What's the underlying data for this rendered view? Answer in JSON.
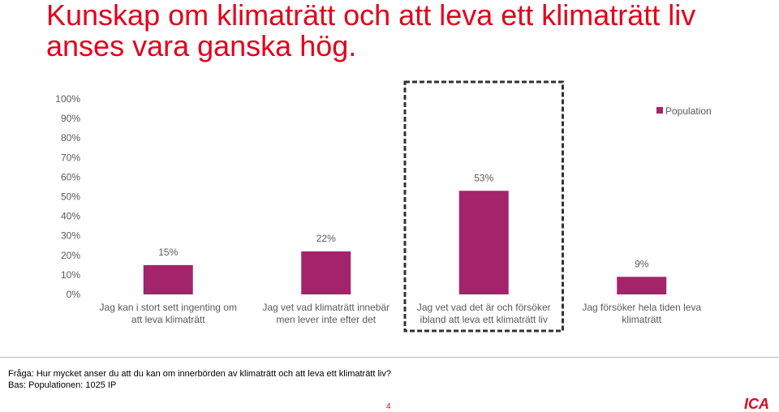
{
  "title": "Kunskap om klimaträtt och att leva ett klimaträtt liv anses vara ganska hög.",
  "footnote": {
    "question": "Fråga: Hur mycket anser du att du kan om innerbörden av klimaträtt och att leva ett klimaträtt liv?",
    "base": "Bas: Populationen: 1025 IP"
  },
  "page_number": "4",
  "logo_text": "ICA",
  "colors": {
    "bar": "#a3246a",
    "title": "#e3001b",
    "logo": "#e3001b"
  },
  "chart_data": {
    "type": "bar",
    "categories": [
      "Jag kan i stort sett ingenting om att leva klimaträtt",
      "Jag vet vad klimaträtt innebär men lever inte efter det",
      "Jag vet vad det är och försöker ibland att leva ett klimaträtt liv",
      "Jag försöker hela tiden leva klimaträtt"
    ],
    "category_lines": [
      [
        "Jag kan i stort sett ingenting om",
        "att leva klimaträtt"
      ],
      [
        "Jag vet vad klimaträtt innebär",
        "men lever inte efter det"
      ],
      [
        "Jag vet vad det är och försöker",
        "ibland att leva ett klimaträtt liv"
      ],
      [
        "Jag försöker hela tiden leva",
        "klimaträtt"
      ]
    ],
    "series": [
      {
        "name": "Population",
        "values": [
          15,
          22,
          53,
          9
        ]
      }
    ],
    "data_labels": [
      "15%",
      "22%",
      "53%",
      "9%"
    ],
    "yticks": [
      "0%",
      "10%",
      "20%",
      "30%",
      "40%",
      "50%",
      "60%",
      "70%",
      "80%",
      "90%",
      "100%"
    ],
    "ylim": [
      0,
      100
    ],
    "highlighted_category": 2,
    "legend_position": "top-right",
    "grid": false
  }
}
